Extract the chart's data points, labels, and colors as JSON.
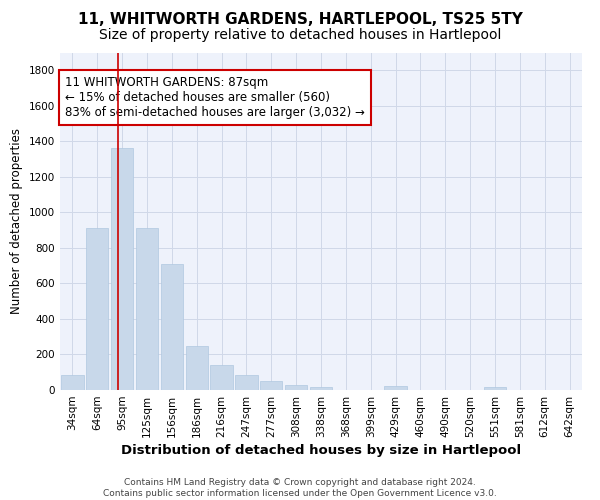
{
  "title": "11, WHITWORTH GARDENS, HARTLEPOOL, TS25 5TY",
  "subtitle": "Size of property relative to detached houses in Hartlepool",
  "xlabel": "Distribution of detached houses by size in Hartlepool",
  "ylabel": "Number of detached properties",
  "bar_color": "#c8d8ea",
  "bar_edgecolor": "#b0c8e0",
  "categories": [
    "34sqm",
    "64sqm",
    "95sqm",
    "125sqm",
    "156sqm",
    "186sqm",
    "216sqm",
    "247sqm",
    "277sqm",
    "308sqm",
    "338sqm",
    "368sqm",
    "399sqm",
    "429sqm",
    "460sqm",
    "490sqm",
    "520sqm",
    "551sqm",
    "581sqm",
    "612sqm",
    "642sqm"
  ],
  "values": [
    87,
    910,
    1365,
    910,
    710,
    248,
    142,
    87,
    53,
    30,
    18,
    0,
    0,
    25,
    0,
    0,
    0,
    18,
    0,
    0,
    0
  ],
  "vline_x": 1.85,
  "vline_color": "#cc0000",
  "annotation_line1": "11 WHITWORTH GARDENS: 87sqm",
  "annotation_line2": "← 15% of detached houses are smaller (560)",
  "annotation_line3": "83% of semi-detached houses are larger (3,032) →",
  "annotation_box_facecolor": "#ffffff",
  "annotation_box_edgecolor": "#cc0000",
  "ylim": [
    0,
    1900
  ],
  "yticks": [
    0,
    200,
    400,
    600,
    800,
    1000,
    1200,
    1400,
    1600,
    1800
  ],
  "footnote": "Contains HM Land Registry data © Crown copyright and database right 2024.\nContains public sector information licensed under the Open Government Licence v3.0.",
  "background_color": "#eef2fb",
  "grid_color": "#d0d8e8",
  "title_fontsize": 11,
  "subtitle_fontsize": 10,
  "xlabel_fontsize": 9.5,
  "ylabel_fontsize": 8.5,
  "tick_fontsize": 7.5,
  "annotation_fontsize": 8.5,
  "footnote_fontsize": 6.5
}
